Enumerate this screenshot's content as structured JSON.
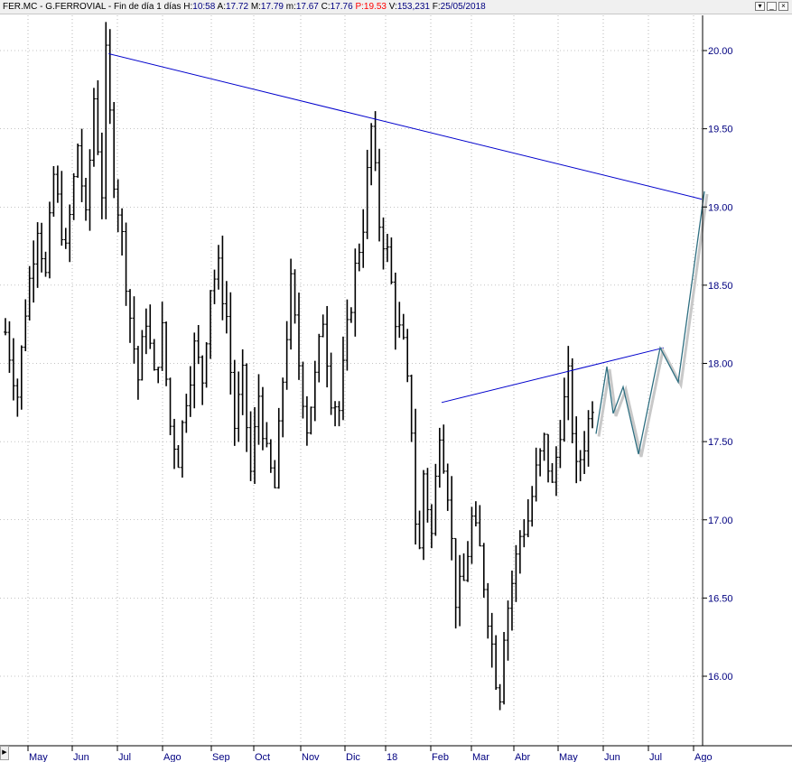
{
  "header": {
    "symbol": "FER.MC",
    "name": "G.FERROVIAL",
    "period": "Fin de día 1 días",
    "fields": [
      {
        "label": "H:",
        "value": "10:58",
        "value_color": "#000080"
      },
      {
        "label": "A:",
        "value": "17.72",
        "value_color": "#000080"
      },
      {
        "label": "M:",
        "value": "17.79",
        "value_color": "#000080"
      },
      {
        "label": "m:",
        "value": "17.67",
        "value_color": "#000080"
      },
      {
        "label": "C:",
        "value": "17.76",
        "value_color": "#000080"
      },
      {
        "label": "P:",
        "value": "19.53",
        "value_color": "#ff0000"
      },
      {
        "label": "V:",
        "value": "153,231",
        "value_color": "#000080"
      },
      {
        "label": "F:",
        "value": "25/05/2018",
        "value_color": "#000080"
      }
    ]
  },
  "window_controls": {
    "menu_icon": "down-arrow-icon",
    "minimize_icon": "minimize-icon",
    "restore_icon": "restore-icon",
    "close_icon": "close-icon"
  },
  "chart_data": {
    "type": "ohlc",
    "grid": true,
    "y_axis": {
      "position": "right",
      "min": 15.55,
      "max": 20.25,
      "ticks": [
        "16.00",
        "16.50",
        "17.00",
        "17.50",
        "18.00",
        "18.50",
        "19.00",
        "19.50",
        "20.00"
      ]
    },
    "x_axis": {
      "ticks": [
        "May",
        "Jun",
        "Jul",
        "Ago",
        "Sep",
        "Oct",
        "Nov",
        "Dic",
        "18",
        "Feb",
        "Mar",
        "Abr",
        "May",
        "Jun",
        "Jul",
        "Ago"
      ]
    },
    "price_path": [
      [
        0,
        18.2
      ],
      [
        3,
        17.8
      ],
      [
        5,
        18.35
      ],
      [
        8,
        18.9
      ],
      [
        10,
        18.55
      ],
      [
        12,
        19.2
      ],
      [
        15,
        18.7
      ],
      [
        18,
        19.4
      ],
      [
        20,
        18.9
      ],
      [
        22,
        19.7
      ],
      [
        24,
        19.1
      ],
      [
        25,
        19.95
      ],
      [
        27,
        19.2
      ],
      [
        29,
        18.8
      ],
      [
        31,
        18.3
      ],
      [
        33,
        17.9
      ],
      [
        35,
        18.3
      ],
      [
        37,
        17.9
      ],
      [
        39,
        18.2
      ],
      [
        41,
        17.6
      ],
      [
        43,
        17.4
      ],
      [
        45,
        17.8
      ],
      [
        47,
        18.1
      ],
      [
        49,
        17.9
      ],
      [
        51,
        18.5
      ],
      [
        53,
        18.6
      ],
      [
        55,
        18.3
      ],
      [
        57,
        17.6
      ],
      [
        59,
        17.9
      ],
      [
        61,
        17.3
      ],
      [
        63,
        17.8
      ],
      [
        65,
        17.4
      ],
      [
        67,
        17.2
      ],
      [
        69,
        17.9
      ],
      [
        71,
        18.5
      ],
      [
        73,
        18.0
      ],
      [
        75,
        17.6
      ],
      [
        77,
        17.9
      ],
      [
        79,
        18.3
      ],
      [
        81,
        17.8
      ],
      [
        83,
        17.7
      ],
      [
        85,
        18.2
      ],
      [
        87,
        18.6
      ],
      [
        89,
        18.9
      ],
      [
        91,
        19.5
      ],
      [
        93,
        18.9
      ],
      [
        95,
        18.7
      ],
      [
        97,
        18.3
      ],
      [
        99,
        18.1
      ],
      [
        101,
        17.6
      ],
      [
        102,
        17.0
      ],
      [
        103,
        16.8
      ],
      [
        104,
        17.3
      ],
      [
        106,
        16.9
      ],
      [
        108,
        17.6
      ],
      [
        110,
        17.2
      ],
      [
        112,
        16.5
      ],
      [
        114,
        16.6
      ],
      [
        116,
        17.0
      ],
      [
        118,
        16.8
      ],
      [
        120,
        16.4
      ],
      [
        122,
        16.0
      ],
      [
        123,
        15.9
      ],
      [
        124,
        16.3
      ],
      [
        126,
        16.6
      ],
      [
        128,
        16.9
      ],
      [
        130,
        17.0
      ],
      [
        132,
        17.3
      ],
      [
        134,
        17.5
      ],
      [
        136,
        17.2
      ],
      [
        138,
        17.6
      ],
      [
        140,
        17.9
      ],
      [
        142,
        17.3
      ],
      [
        144,
        17.5
      ],
      [
        146,
        17.76
      ]
    ],
    "bars_count": 147,
    "bars_first_x": 6,
    "bars_last_x": 656,
    "series": [],
    "annotations": {
      "upper_trendline": {
        "from": [
          25,
          19.98
        ],
        "to": [
          176,
          19.05
        ]
      },
      "lower_trendline": {
        "from": [
          109,
          17.75
        ],
        "to": [
          163,
          18.1
        ]
      },
      "projection_path": [
        [
          146,
          17.55
        ],
        [
          150,
          17.98
        ],
        [
          152,
          17.68
        ],
        [
          155,
          17.85
        ],
        [
          158,
          17.42
        ],
        [
          162,
          18.1
        ],
        [
          166,
          17.88
        ],
        [
          176,
          19.1
        ]
      ]
    },
    "colors": {
      "bars": "#000000",
      "trendline": "#0000cc",
      "projection": "#2e6e80",
      "grid": "#888888",
      "axis_text": "#000080"
    }
  }
}
